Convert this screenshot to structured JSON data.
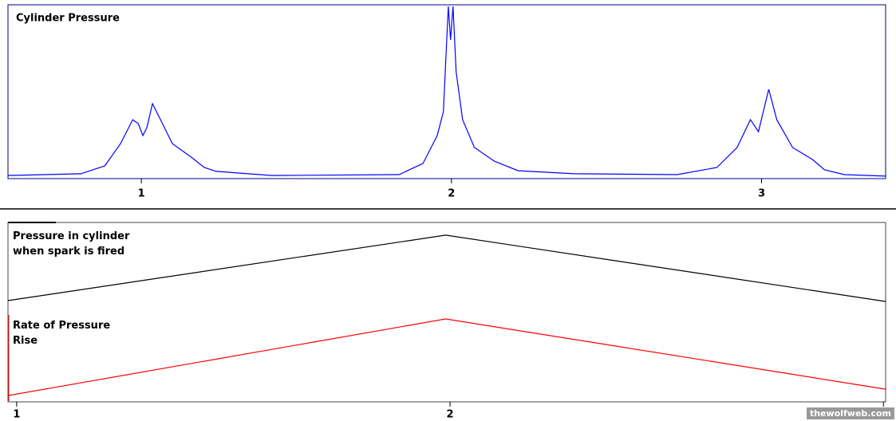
{
  "chart_data": [
    {
      "type": "line",
      "title": "Cylinder Pressure",
      "x": [
        0.57,
        0.805,
        0.882,
        0.933,
        0.972,
        0.99,
        1.005,
        1.018,
        1.036,
        1.062,
        1.1,
        1.164,
        1.203,
        1.241,
        1.421,
        1.831,
        1.908,
        1.954,
        1.974,
        1.99,
        1.997,
        2.005,
        2.015,
        2.036,
        2.074,
        2.138,
        2.215,
        2.395,
        2.728,
        2.856,
        2.921,
        2.964,
        2.99,
        3.023,
        3.049,
        3.1,
        3.164,
        3.203,
        3.267,
        3.4
      ],
      "series": [
        {
          "color": "#0000ff",
          "values": [
            0.9,
            1.9,
            6.5,
            19.6,
            33.6,
            31.3,
            24.3,
            29,
            43,
            33.6,
            19.6,
            11.2,
            5.6,
            3.3,
            0.9,
            1.4,
            7.9,
            24.3,
            38.3,
            100,
            80.4,
            100,
            61.7,
            33.6,
            17.3,
            9.3,
            3.7,
            1.9,
            1.4,
            5.6,
            17.3,
            33.6,
            26.6,
            51.4,
            33.6,
            17.3,
            10.3,
            4.2,
            1.4,
            0.5
          ]
        }
      ],
      "xlim": [
        0.57,
        3.4
      ],
      "xticks": [
        1,
        2,
        3
      ],
      "ylim": [
        0,
        100
      ]
    },
    {
      "type": "line",
      "x": [
        0.98,
        1.99,
        3.005
      ],
      "series": [
        {
          "name": "Pressure in cylinder when spark is fired",
          "color": "#000000",
          "values": [
            56.5,
            93.3,
            56
          ]
        },
        {
          "name": "Rate of Pressure Rise",
          "color": "#ff0000",
          "values": [
            3.1,
            46.2,
            6.7
          ]
        }
      ],
      "xlim": [
        0.98,
        3.005
      ],
      "xticks": [
        1,
        2,
        3
      ],
      "ylim": [
        0,
        100
      ]
    }
  ],
  "watermark": "thewolfweb.com"
}
